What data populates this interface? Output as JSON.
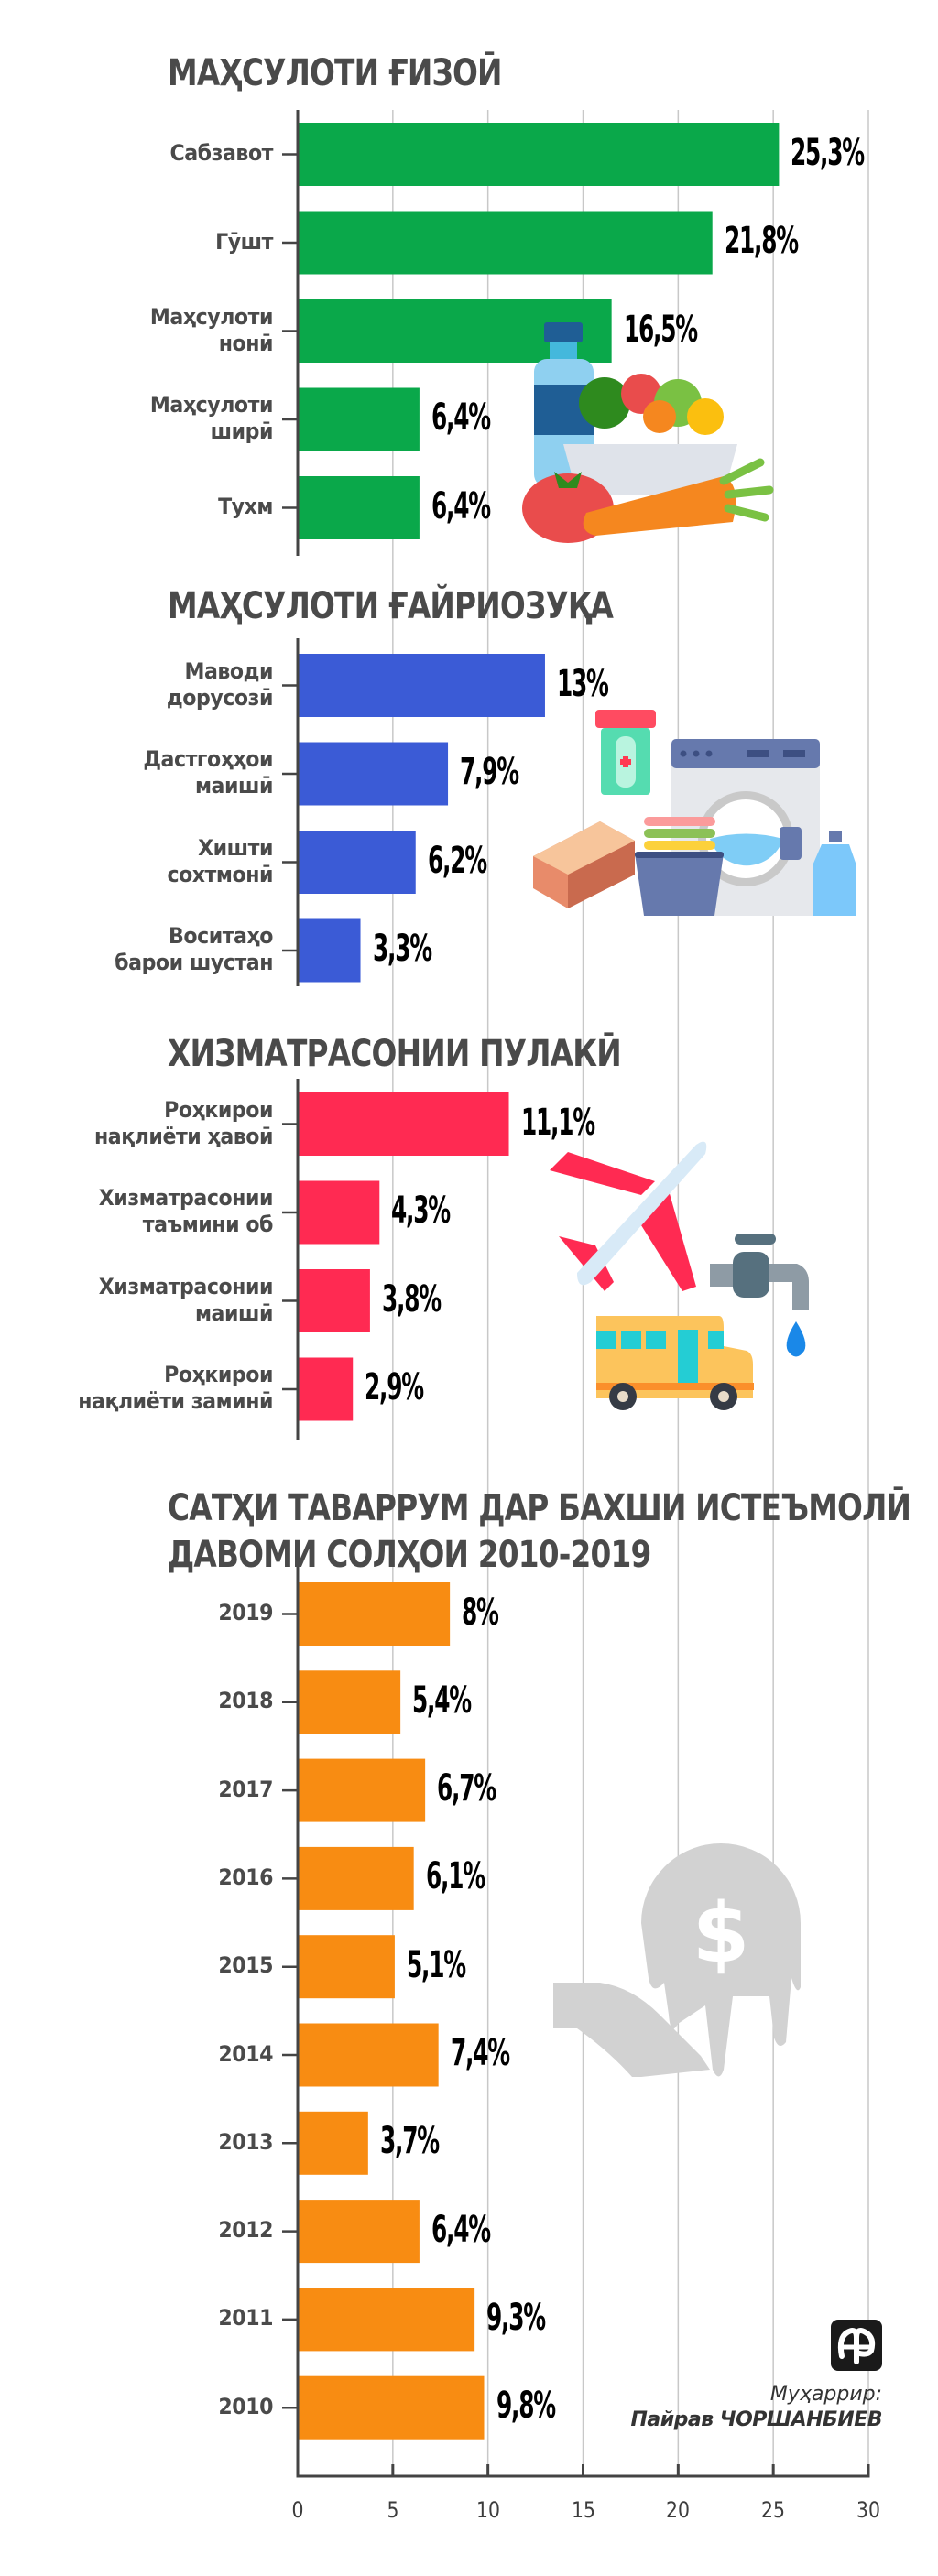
{
  "chart_data": [
    {
      "type": "bar",
      "orientation": "horizontal",
      "title": "МАҲСУЛОТИ ҒИЗОӢ",
      "color": "#0aa84a",
      "categories": [
        [
          "Сабзавот"
        ],
        [
          "Гӯшт"
        ],
        [
          "Маҳсулоти",
          "нонӣ"
        ],
        [
          "Маҳсулоти",
          "ширӣ"
        ],
        [
          "Тухм"
        ]
      ],
      "values": [
        25.3,
        21.8,
        16.5,
        6.4,
        6.4
      ],
      "labels": [
        "25,3%",
        "21,8%",
        "16,5%",
        "6,4%",
        "6,4%"
      ],
      "illustration": "food-icon",
      "xlim": [
        0,
        30
      ]
    },
    {
      "type": "bar",
      "orientation": "horizontal",
      "title": "МАҲСУЛОТИ ҒАЙРИОЗУҚА",
      "color": "#3b5bd6",
      "categories": [
        [
          "Маводи",
          "дорусозӣ"
        ],
        [
          "Дастгоҳҳои",
          "маишӣ"
        ],
        [
          "Хишти",
          "сохтмонӣ"
        ],
        [
          "Воситаҳо",
          "барои шустан"
        ]
      ],
      "values": [
        13,
        7.9,
        6.2,
        3.3
      ],
      "labels": [
        "13%",
        "7,9%",
        "6,2%",
        "3,3%"
      ],
      "illustration": "household-goods-icon",
      "xlim": [
        0,
        30
      ]
    },
    {
      "type": "bar",
      "orientation": "horizontal",
      "title": "ХИЗМАТРАСОНИИ ПУЛАКӢ",
      "color": "#ff2a52",
      "categories": [
        [
          "Роҳкирои",
          "нақлиёти ҳавоӣ"
        ],
        [
          "Хизматрасонии",
          "таъмини об"
        ],
        [
          "Хизматрасонии",
          "маишӣ"
        ],
        [
          "Роҳкирои",
          "нақлиёти заминӣ"
        ]
      ],
      "values": [
        11.1,
        4.3,
        3.8,
        2.9
      ],
      "labels": [
        "11,1%",
        "4,3%",
        "3,8%",
        "2,9%"
      ],
      "illustration": "transport-services-icon",
      "xlim": [
        0,
        30
      ]
    },
    {
      "type": "bar",
      "orientation": "horizontal",
      "title": [
        "САТҲИ ТАВАРРУМ ДАР БАХШИ ИСТЕЪМОЛӢ",
        "ДАВОМИ СОЛҲОИ 2010-2019"
      ],
      "color": "#f88c12",
      "categories": [
        [
          "2019"
        ],
        [
          "2018"
        ],
        [
          "2017"
        ],
        [
          "2016"
        ],
        [
          "2015"
        ],
        [
          "2014"
        ],
        [
          "2013"
        ],
        [
          "2012"
        ],
        [
          "2011"
        ],
        [
          "2010"
        ]
      ],
      "values": [
        8,
        5.4,
        6.7,
        6.1,
        5.1,
        7.4,
        3.7,
        6.4,
        9.3,
        9.8
      ],
      "labels": [
        "8%",
        "5,4%",
        "6,7%",
        "6,1%",
        "5,1%",
        "7,4%",
        "3,7%",
        "6,4%",
        "9,3%",
        "9,8%"
      ],
      "illustration": "inflation-money-hand-icon",
      "xlim": [
        0,
        30
      ],
      "xticks": [
        "0",
        "5",
        "10",
        "15",
        "20",
        "25",
        "30"
      ]
    }
  ],
  "axis": {
    "xticks": [
      "0",
      "5",
      "10",
      "15",
      "20",
      "25",
      "30"
    ],
    "xlim": [
      0,
      30
    ],
    "grid": true
  },
  "credit": {
    "role": "Муҳаррир:",
    "name": "Пайрав ЧОРШАНБИЕВ"
  },
  "logo": "publisher-logo-icon",
  "colors": {
    "title": "#4a4a4a",
    "grid": "#c8c8c8",
    "axis": "#444444"
  }
}
